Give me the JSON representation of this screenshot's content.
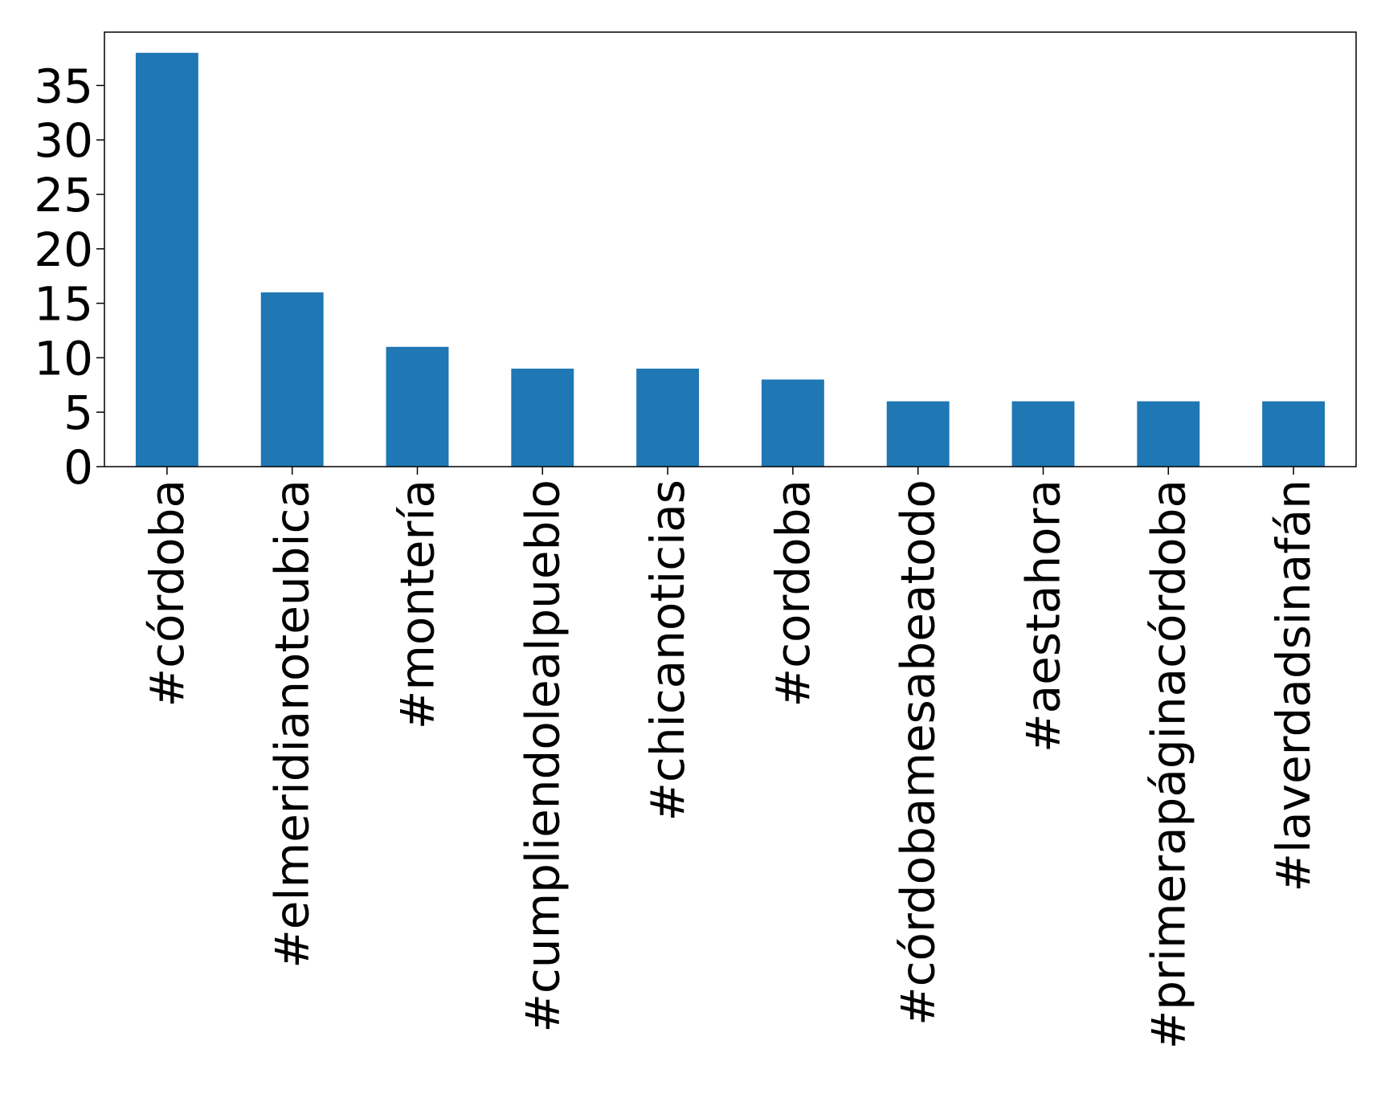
{
  "chart_data": {
    "type": "bar",
    "categories": [
      "#córdoba",
      "#elmeridianoteubica",
      "#montería",
      "#cumpliendolealpueblo",
      "#chicanoticias",
      "#cordoba",
      "#córdobamesabeatodo",
      "#aestahora",
      "#primerapáginacórdoba",
      "#laverdadsinafán"
    ],
    "values": [
      38,
      16,
      11,
      9,
      9,
      8,
      6,
      6,
      6,
      6
    ],
    "yticks": [
      0,
      5,
      10,
      15,
      20,
      25,
      30,
      35
    ],
    "ylim": [
      0,
      39.9
    ],
    "bar_color": "#1f77b4",
    "title": "",
    "xlabel": "",
    "ylabel": "",
    "grid": false,
    "legend": false
  }
}
